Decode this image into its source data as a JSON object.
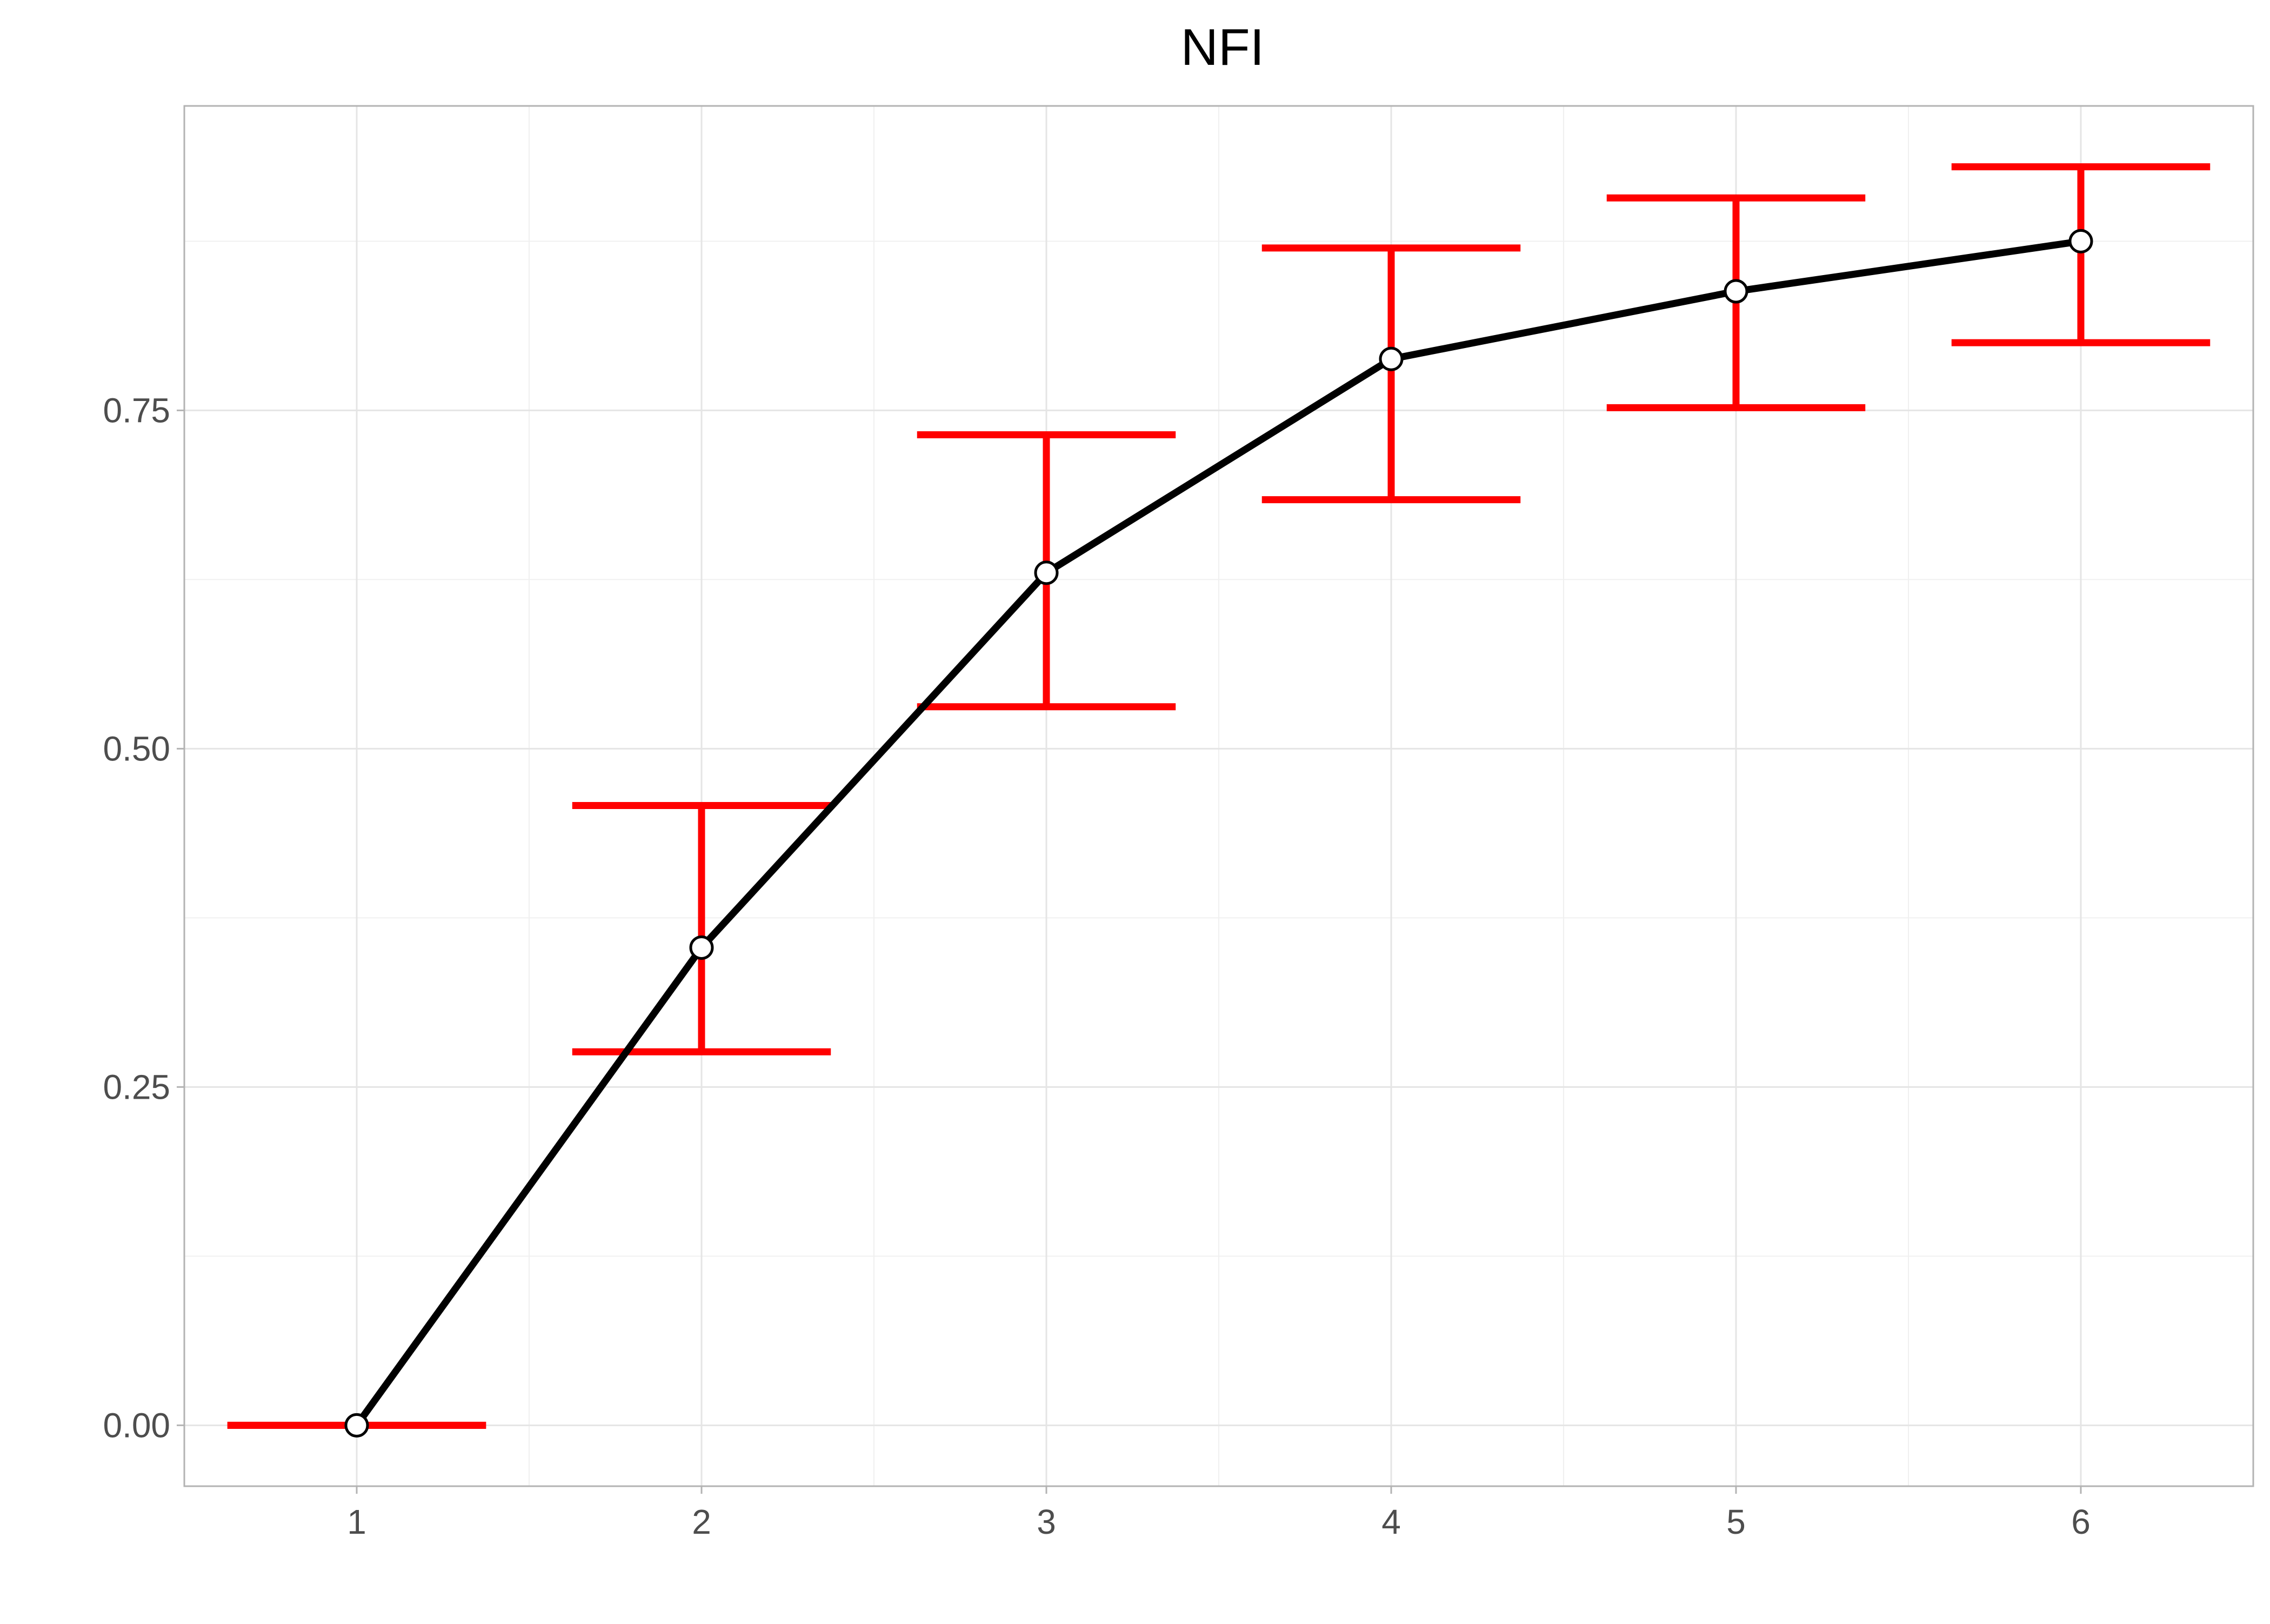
{
  "chart_data": {
    "type": "line",
    "title": "NFI",
    "xlabel": "",
    "ylabel": "",
    "x": [
      1,
      2,
      3,
      4,
      5,
      6
    ],
    "x_tick_labels": [
      "1",
      "2",
      "3",
      "4",
      "5",
      "6"
    ],
    "y_tick_labels": [
      "0.00",
      "0.25",
      "0.50",
      "0.75"
    ],
    "y_ticks": [
      0,
      0.25,
      0.5,
      0.75
    ],
    "xlim": [
      0.5,
      6.5
    ],
    "ylim": [
      -0.045,
      0.975
    ],
    "grid": true,
    "series": [
      {
        "values": [
          0.0,
          0.353,
          0.63,
          0.788,
          0.838,
          0.875
        ],
        "error_low": [
          0.0,
          0.276,
          0.531,
          0.684,
          0.752,
          0.8
        ],
        "error_high": [
          0.0,
          0.458,
          0.732,
          0.87,
          0.907,
          0.93
        ]
      }
    ],
    "colors": {
      "line": "#000000",
      "error_bars": "#ff0000",
      "point_fill": "#ffffff",
      "grid": "#e5e5e5",
      "panel_border": "#b3b3b3"
    }
  }
}
